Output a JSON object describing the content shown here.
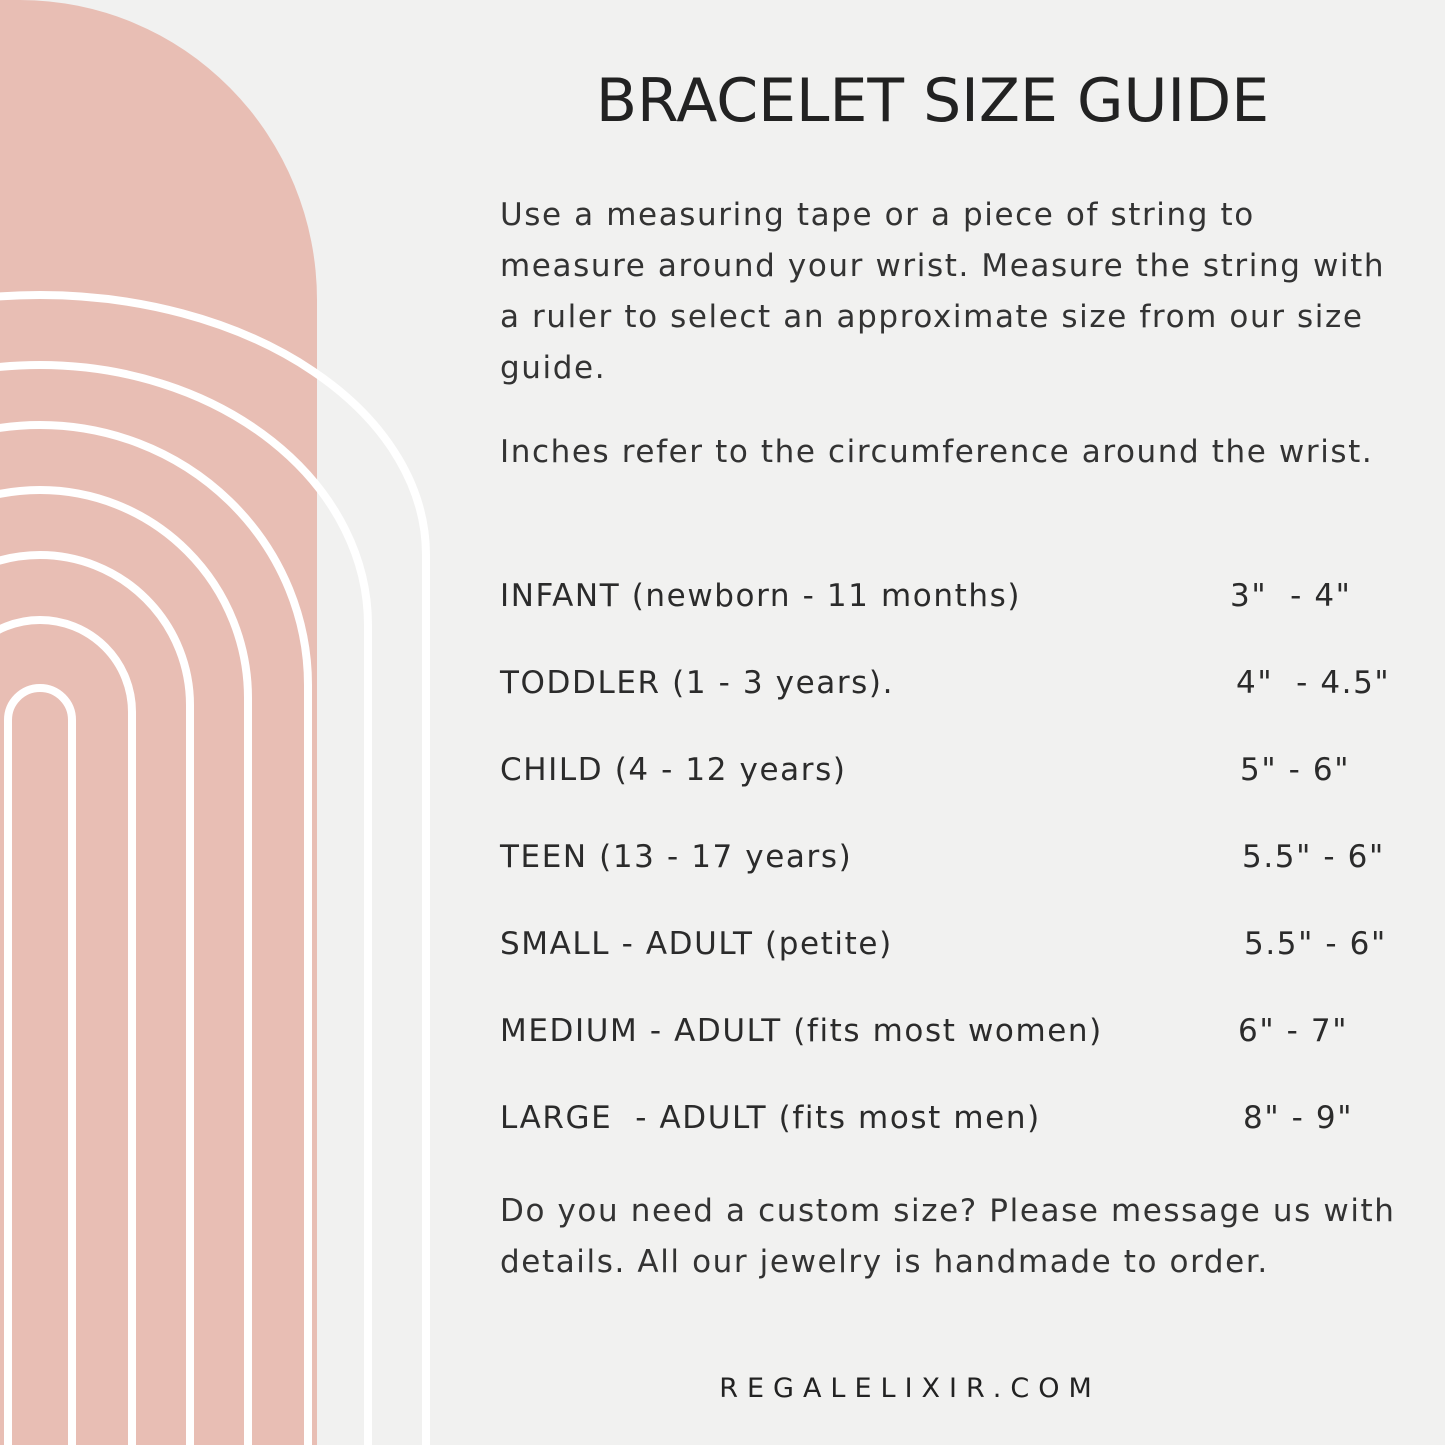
{
  "title": "BRACELET SIZE GUIDE",
  "intro": "Use a measuring tape or a piece of string to measure around your wrist. Measure the string with a ruler to select an approximate size from our size guide.",
  "note": "Inches refer to the circumference around the wrist.",
  "sizes": [
    {
      "label": "INFANT (newborn - 11 months)",
      "range": "3\"  - 4\""
    },
    {
      "label": "TODDLER (1 - 3 years).",
      "range": "4\"  - 4.5\""
    },
    {
      "label": "CHILD (4 - 12 years)",
      "range": "5\" - 6\""
    },
    {
      "label": "TEEN (13 - 17 years)",
      "range": "5.5\" - 6\""
    },
    {
      "label": "SMALL - ADULT (petite)",
      "range": "5.5\" - 6\""
    },
    {
      "label": "MEDIUM - ADULT (fits most women)",
      "range": "6\" - 7\""
    },
    {
      "label": "LARGE  - ADULT (fits most men)",
      "range": "8\" - 9\""
    }
  ],
  "custom": "Do you need a custom size? Please message us with details. All our jewelry is handmade to order.",
  "website": "REGALELIXIR.COM",
  "colors": {
    "arch": "#e8beb4",
    "background": "#f1f1f0",
    "rings": "#ffffff",
    "text": "#2b2b2b"
  }
}
